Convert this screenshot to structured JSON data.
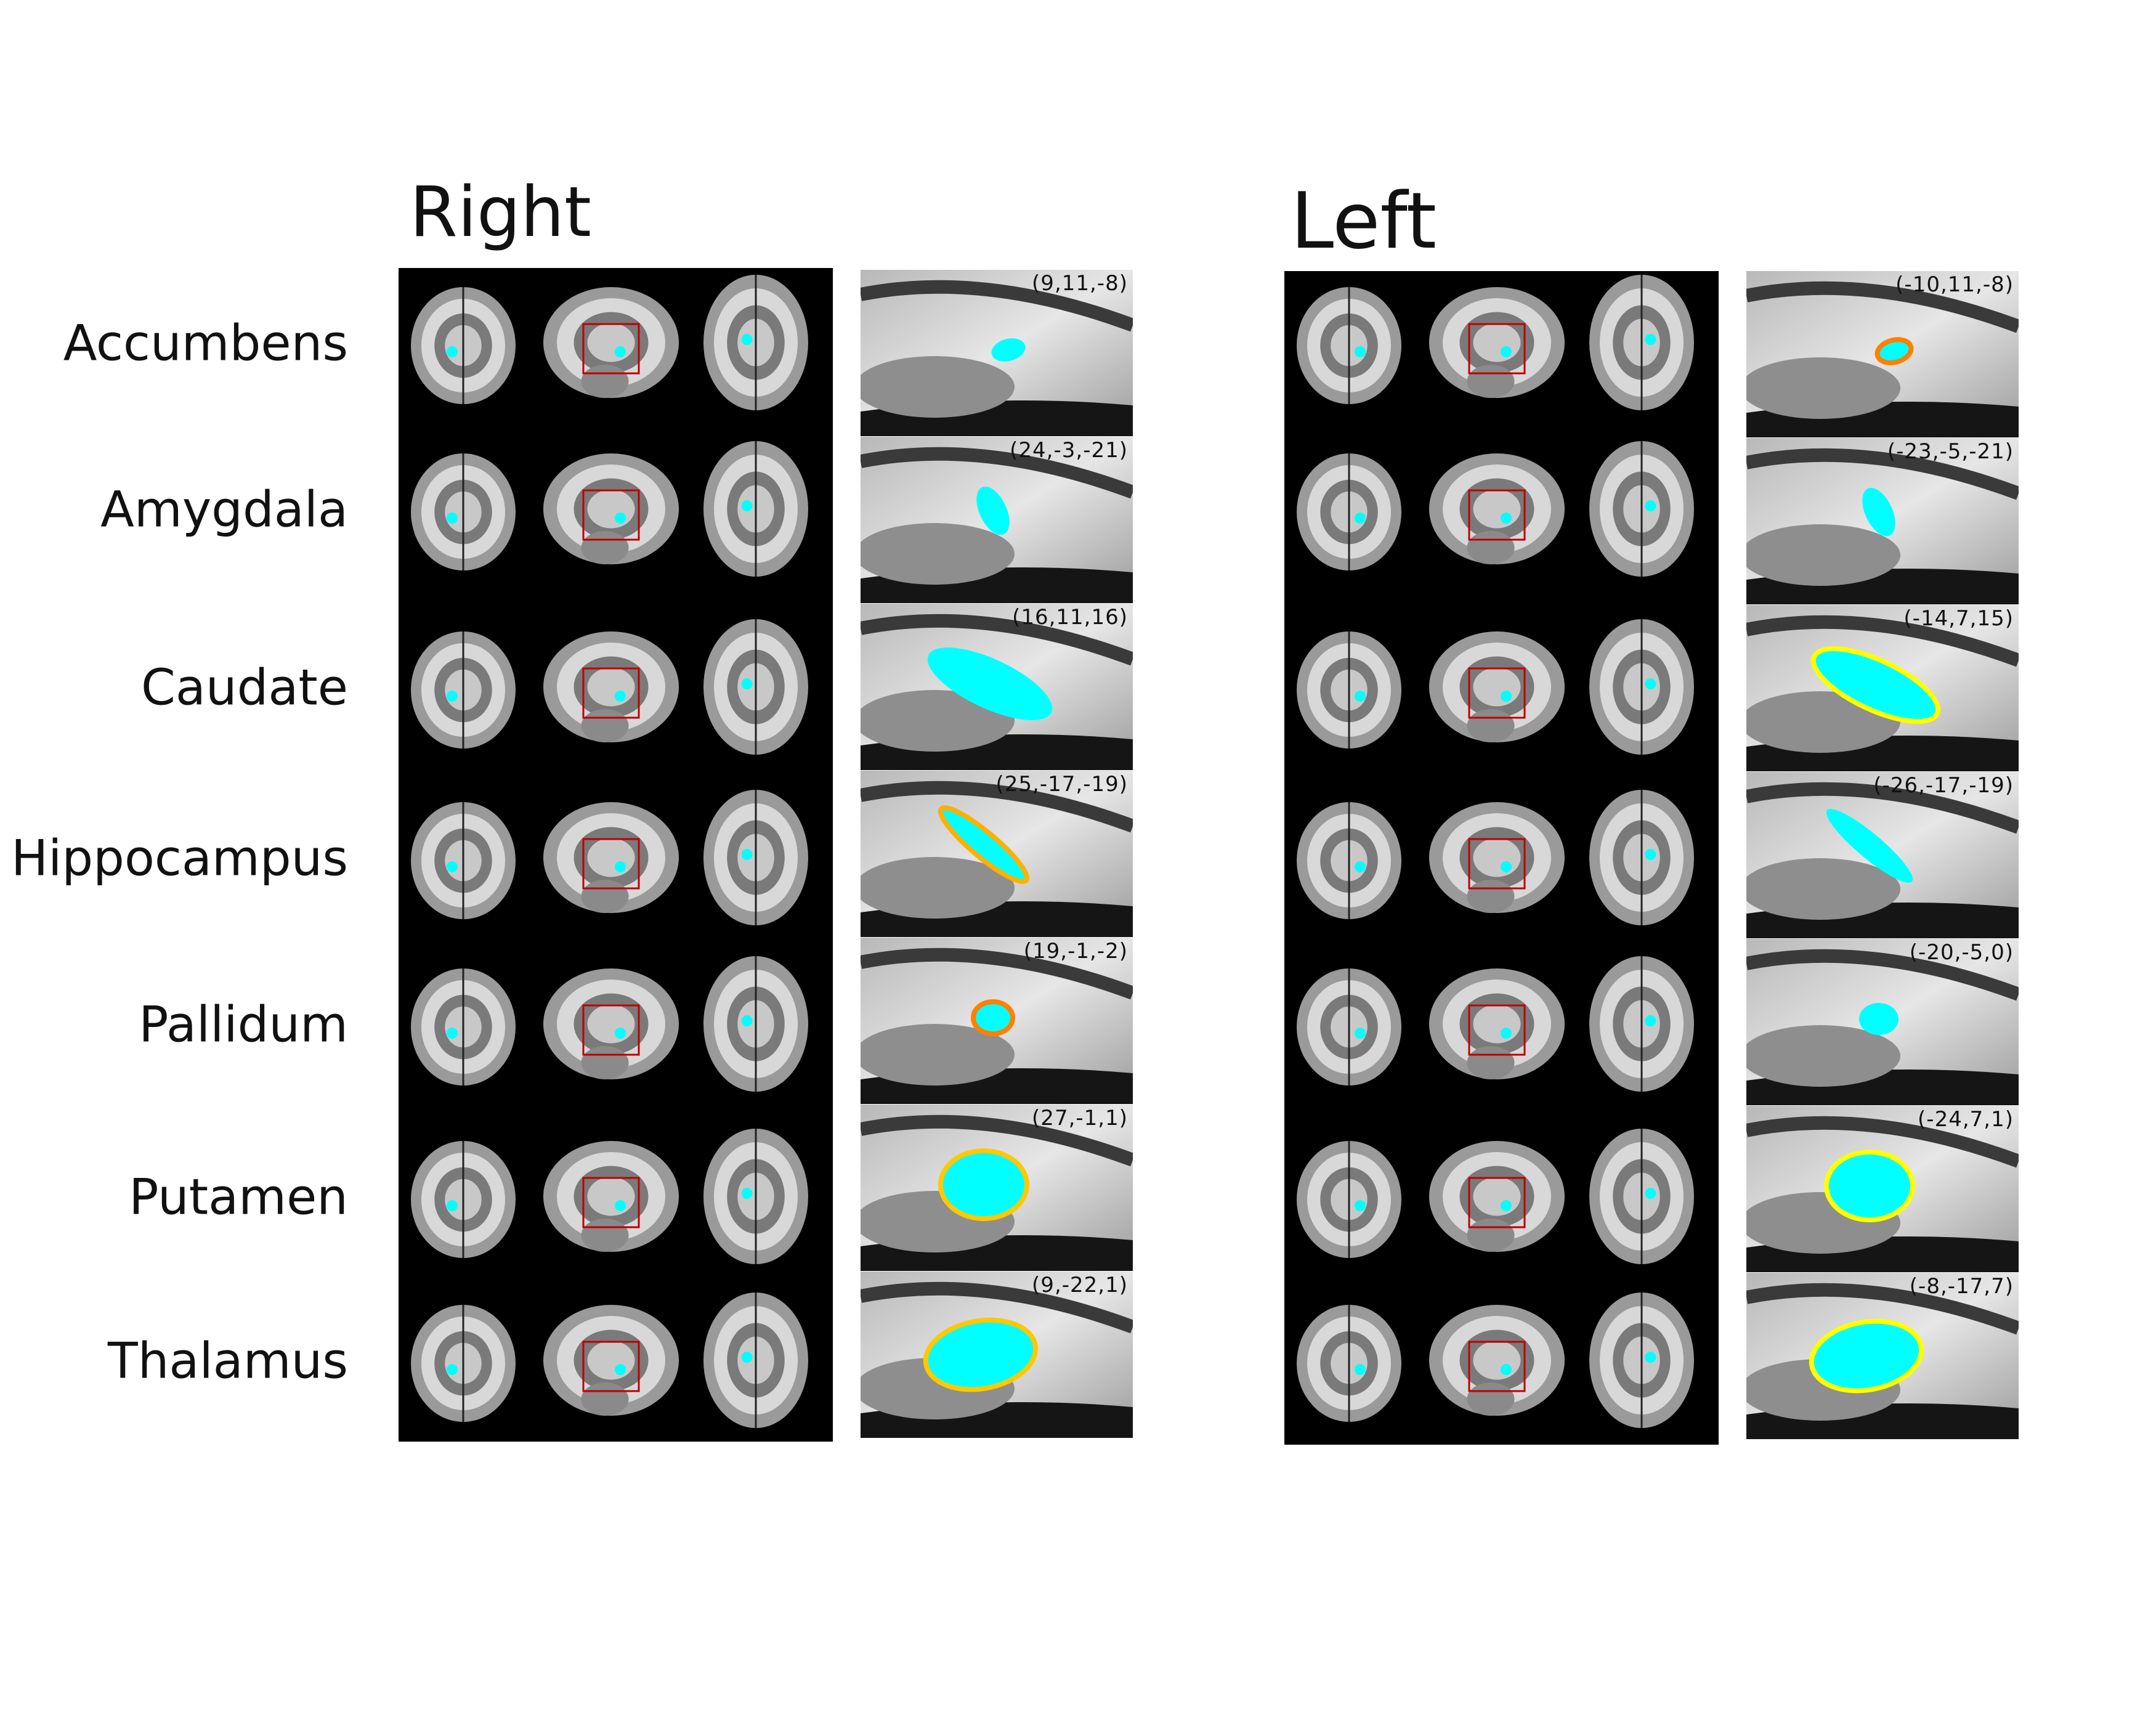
{
  "titles": {
    "right": "Right",
    "left": "Left"
  },
  "colors": {
    "mask": "#00ffff",
    "orange": "#ff8000",
    "gold": "#ffc800",
    "yellow": "#ffff00",
    "box": "#c00000"
  },
  "rows": [
    {
      "label": "Accumbens",
      "right": {
        "coord": "(9,11,-8)",
        "outline": null
      },
      "left": {
        "coord": "(-10,11,-8)",
        "outline": "#ff8000"
      }
    },
    {
      "label": "Amygdala",
      "right": {
        "coord": "(24,-3,-21)",
        "outline": null
      },
      "left": {
        "coord": "(-23,-5,-21)",
        "outline": null
      }
    },
    {
      "label": "Caudate",
      "right": {
        "coord": "(16,11,16)",
        "outline": null
      },
      "left": {
        "coord": "(-14,7,15)",
        "outline": "#ffff00"
      }
    },
    {
      "label": "Hippocampus",
      "right": {
        "coord": "(25,-17,-19)",
        "outline": "#ffb000"
      },
      "left": {
        "coord": "(-26,-17,-19)",
        "outline": null
      }
    },
    {
      "label": "Pallidum",
      "right": {
        "coord": "(19,-1,-2)",
        "outline": "#ff8000"
      },
      "left": {
        "coord": "(-20,-5,0)",
        "outline": null
      }
    },
    {
      "label": "Putamen",
      "right": {
        "coord": "(27,-1,1)",
        "outline": "#ffc800"
      },
      "left": {
        "coord": "(-24,7,1)",
        "outline": "#ffff00"
      }
    },
    {
      "label": "Thalamus",
      "right": {
        "coord": "(9,-22,1)",
        "outline": "#ffc800"
      },
      "left": {
        "coord": "(-8,-17,7)",
        "outline": "#ffff00"
      }
    }
  ]
}
